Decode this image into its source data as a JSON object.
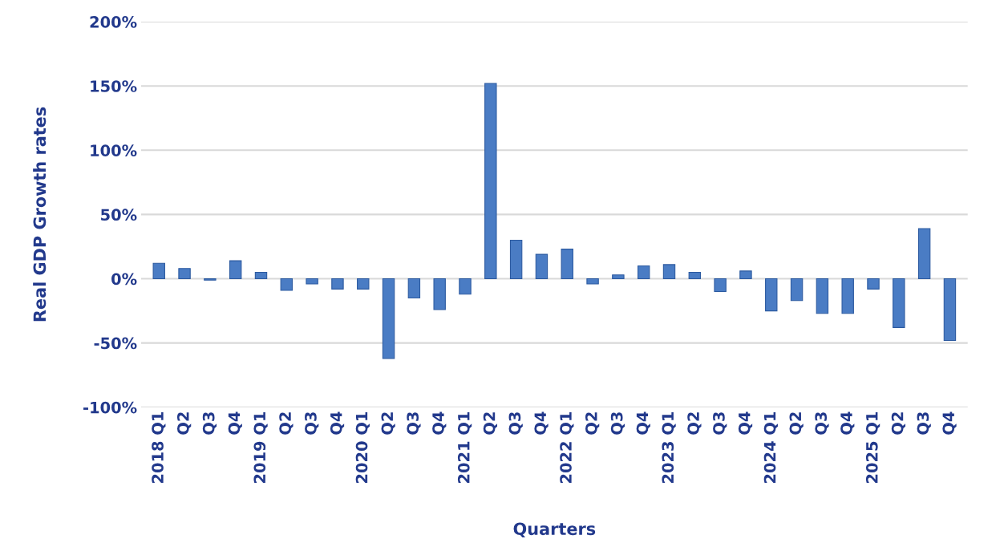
{
  "chart_data": {
    "type": "bar",
    "xlabel": "Quarters",
    "ylabel": "Real GDP Growth rates",
    "categories": [
      "2018 Q1",
      "Q2",
      "Q3",
      "Q4",
      "2019 Q1",
      "Q2",
      "Q3",
      "Q4",
      "2020 Q1",
      "Q2",
      "Q3",
      "Q4",
      "2021 Q1",
      "Q2",
      "Q3",
      "Q4",
      "2022 Q1",
      "Q2",
      "Q3",
      "Q4",
      "2023 Q1",
      "Q2",
      "Q3",
      "Q4",
      "2024 Q1",
      "Q2",
      "Q3",
      "Q4",
      "2025 Q1",
      "Q2",
      "Q3",
      "Q4"
    ],
    "values": [
      12,
      8,
      -1,
      14,
      5,
      -9,
      -4,
      -8,
      -8,
      -62,
      -15,
      -24,
      -12,
      152,
      30,
      19,
      23,
      -4,
      3,
      10,
      11,
      5,
      -10,
      6,
      -25,
      -17,
      -27,
      -27,
      -8,
      -38,
      39,
      -48
    ],
    "color": "#4a7cc4",
    "ylim": [
      -100,
      200
    ],
    "yticks": [
      {
        "value": -100,
        "label": "-100%"
      },
      {
        "value": -50,
        "label": "-50%"
      },
      {
        "value": 0,
        "label": "0%"
      },
      {
        "value": 50,
        "label": "50%"
      },
      {
        "value": 100,
        "label": "100%"
      },
      {
        "value": 150,
        "label": "150%"
      },
      {
        "value": 200,
        "label": "200%"
      }
    ],
    "grid": "y"
  }
}
